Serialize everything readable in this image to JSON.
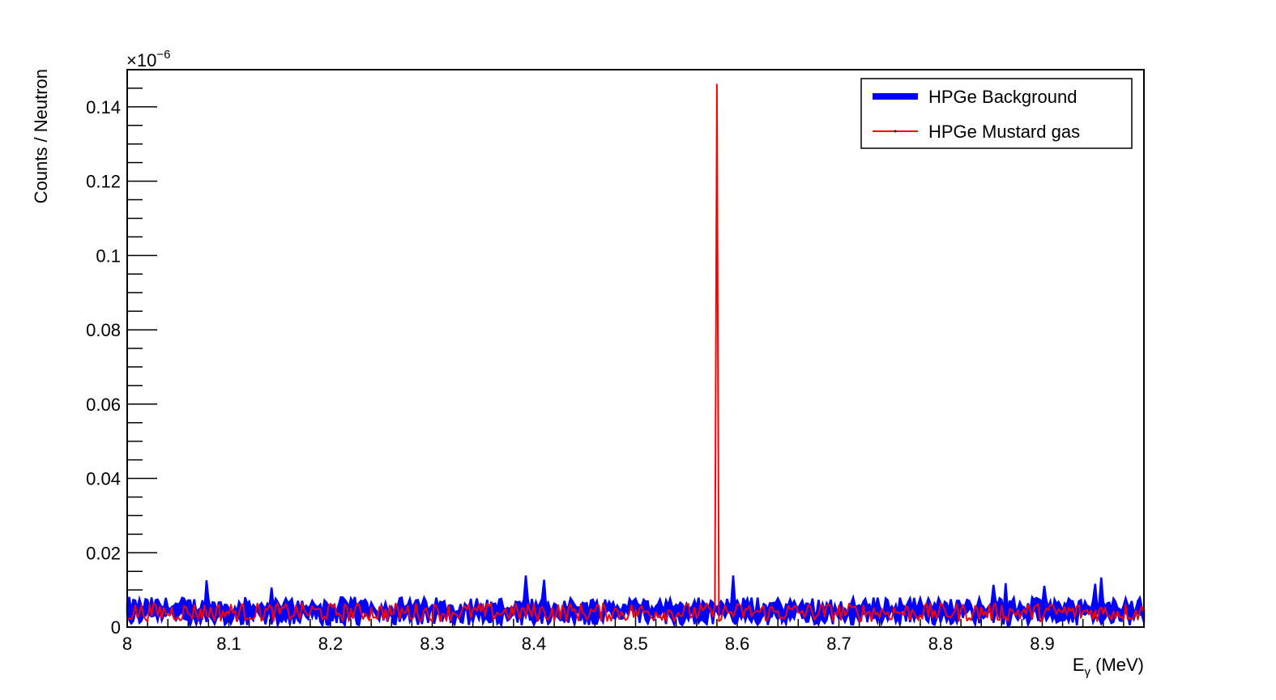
{
  "chart_data": {
    "type": "line",
    "x_axis": {
      "label_main": "E",
      "label_sub": "γ",
      "label_unit": " (MeV)",
      "range": [
        8.0,
        9.0
      ],
      "ticks": [
        8.0,
        8.1,
        8.2,
        8.3,
        8.4,
        8.5,
        8.6,
        8.7,
        8.8,
        8.9
      ],
      "tick_labels": [
        "8",
        "8.1",
        "8.2",
        "8.3",
        "8.4",
        "8.5",
        "8.6",
        "8.7",
        "8.8",
        "8.9"
      ]
    },
    "y_axis": {
      "label": "Counts / Neutron",
      "range": [
        0,
        0.15
      ],
      "multiplier_base": "×10",
      "multiplier_exp": "−6",
      "ticks": [
        0,
        0.02,
        0.04,
        0.06,
        0.08,
        0.1,
        0.12,
        0.14
      ],
      "tick_labels": [
        "0",
        "0.02",
        "0.04",
        "0.06",
        "0.08",
        "0.1",
        "0.12",
        "0.14"
      ]
    },
    "legend": {
      "placement": "top-right",
      "entries": [
        {
          "name": "HPGe Background",
          "color": "#0000ff"
        },
        {
          "name": "HPGe Mustard gas",
          "color": "#ff0000"
        }
      ]
    },
    "series": [
      {
        "name": "HPGe Background",
        "color": "#0000ff",
        "style": "band",
        "baseline": 0.0045,
        "noise_amplitude": 0.0045,
        "peak_max": 0.014
      },
      {
        "name": "HPGe Mustard gas",
        "color": "#ff0000",
        "style": "line",
        "baseline": 0.004,
        "noise_amplitude": 0.0025,
        "peak": {
          "x": 8.58,
          "y": 0.146
        }
      }
    ]
  }
}
